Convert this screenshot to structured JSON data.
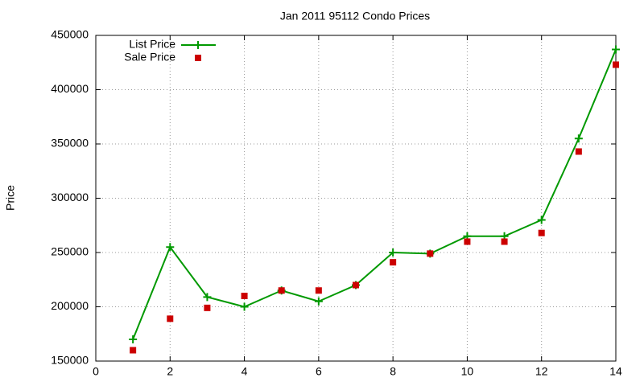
{
  "chart_data": {
    "type": "line",
    "title": "Jan 2011 95112 Condo Prices",
    "y_label": "Price",
    "x": [
      1,
      2,
      3,
      4,
      5,
      6,
      7,
      8,
      9,
      10,
      11,
      12,
      13,
      14
    ],
    "series": [
      {
        "name": "List Price",
        "color": "#009900",
        "marker": "plus",
        "line": true,
        "values": [
          170000,
          255000,
          209000,
          200000,
          215000,
          205000,
          220000,
          250000,
          249000,
          265000,
          265000,
          280000,
          355000,
          437000
        ]
      },
      {
        "name": "Sale Price",
        "color": "#cc0000",
        "marker": "square",
        "line": false,
        "values": [
          160000,
          189000,
          199000,
          210000,
          215000,
          215000,
          220000,
          241000,
          249000,
          260000,
          260000,
          268000,
          343000,
          423000
        ]
      }
    ],
    "xlim": [
      0,
      14
    ],
    "xticks": [
      0,
      2,
      4,
      6,
      8,
      10,
      12,
      14
    ],
    "ylim": [
      150000,
      450000
    ],
    "yticks": [
      150000,
      200000,
      250000,
      300000,
      350000,
      400000,
      450000
    ],
    "grid": true,
    "legend": "top-left"
  }
}
